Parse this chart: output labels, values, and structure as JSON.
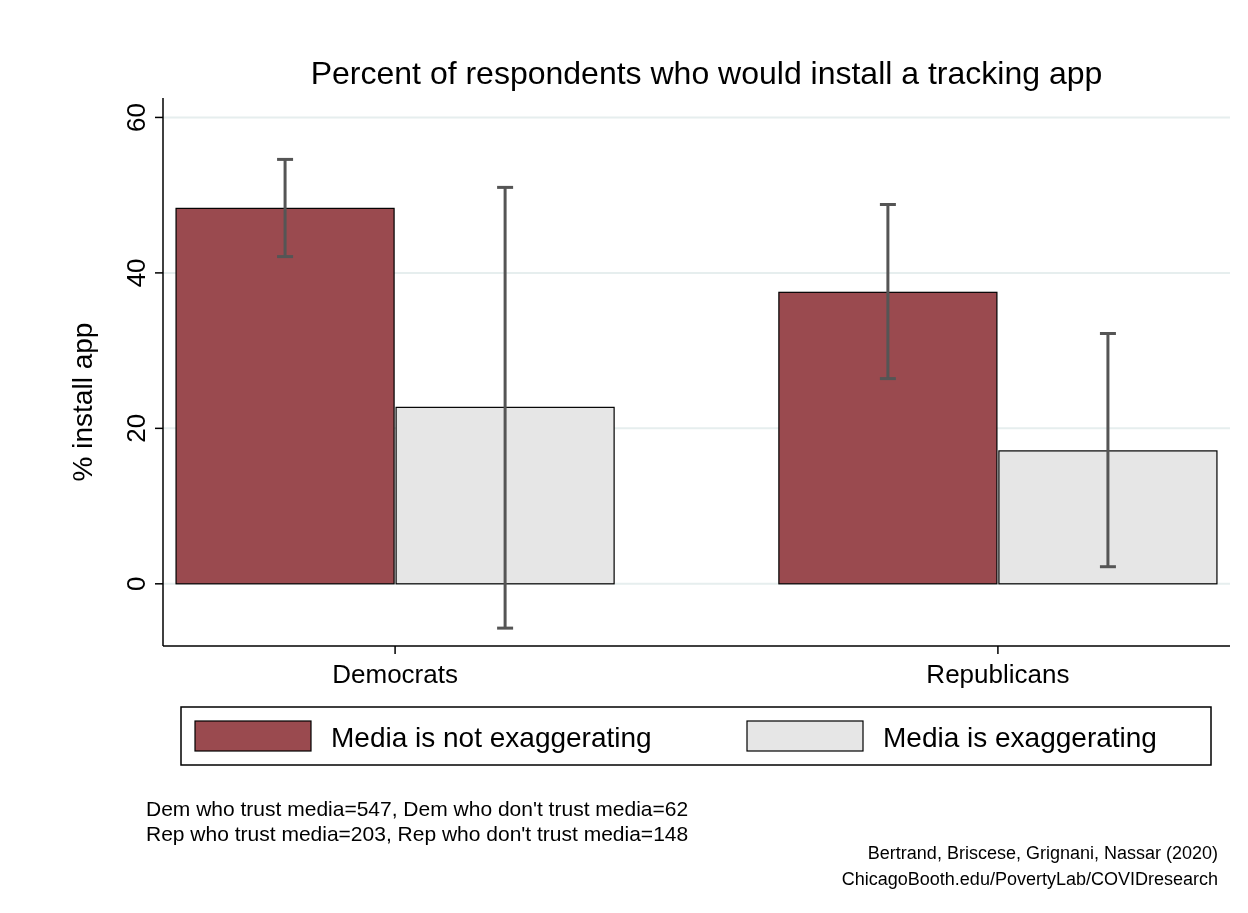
{
  "chart_data": {
    "type": "bar",
    "title": "Percent of respondents who would install a tracking app",
    "ylabel": "% install app",
    "categories": [
      "Democrats",
      "Republicans"
    ],
    "series": [
      {
        "name": "Media is not exaggerating",
        "color": "#9a4a4f",
        "values": [
          48.3,
          37.5
        ],
        "errors": [
          [
            42.1,
            54.6
          ],
          [
            26.4,
            48.8
          ]
        ]
      },
      {
        "name": "Media is exaggerating",
        "color": "#e6e6e6",
        "values": [
          22.7,
          17.1
        ],
        "errors": [
          [
            -5.7,
            51.0
          ],
          [
            2.2,
            32.2
          ]
        ]
      }
    ],
    "ylim": [
      -8,
      62.5
    ],
    "yticks": [
      0,
      20,
      40,
      60
    ],
    "grid": "y",
    "legend": "bottom",
    "annotations": [
      "Dem who trust media=547, Dem who don't trust media=62",
      "Rep who trust media=203, Rep who don't trust media=148",
      "Bertrand, Briscese, Grignani, Nassar (2020)",
      "ChicagoBooth.edu/PovertyLab/COVIDresearch"
    ]
  }
}
